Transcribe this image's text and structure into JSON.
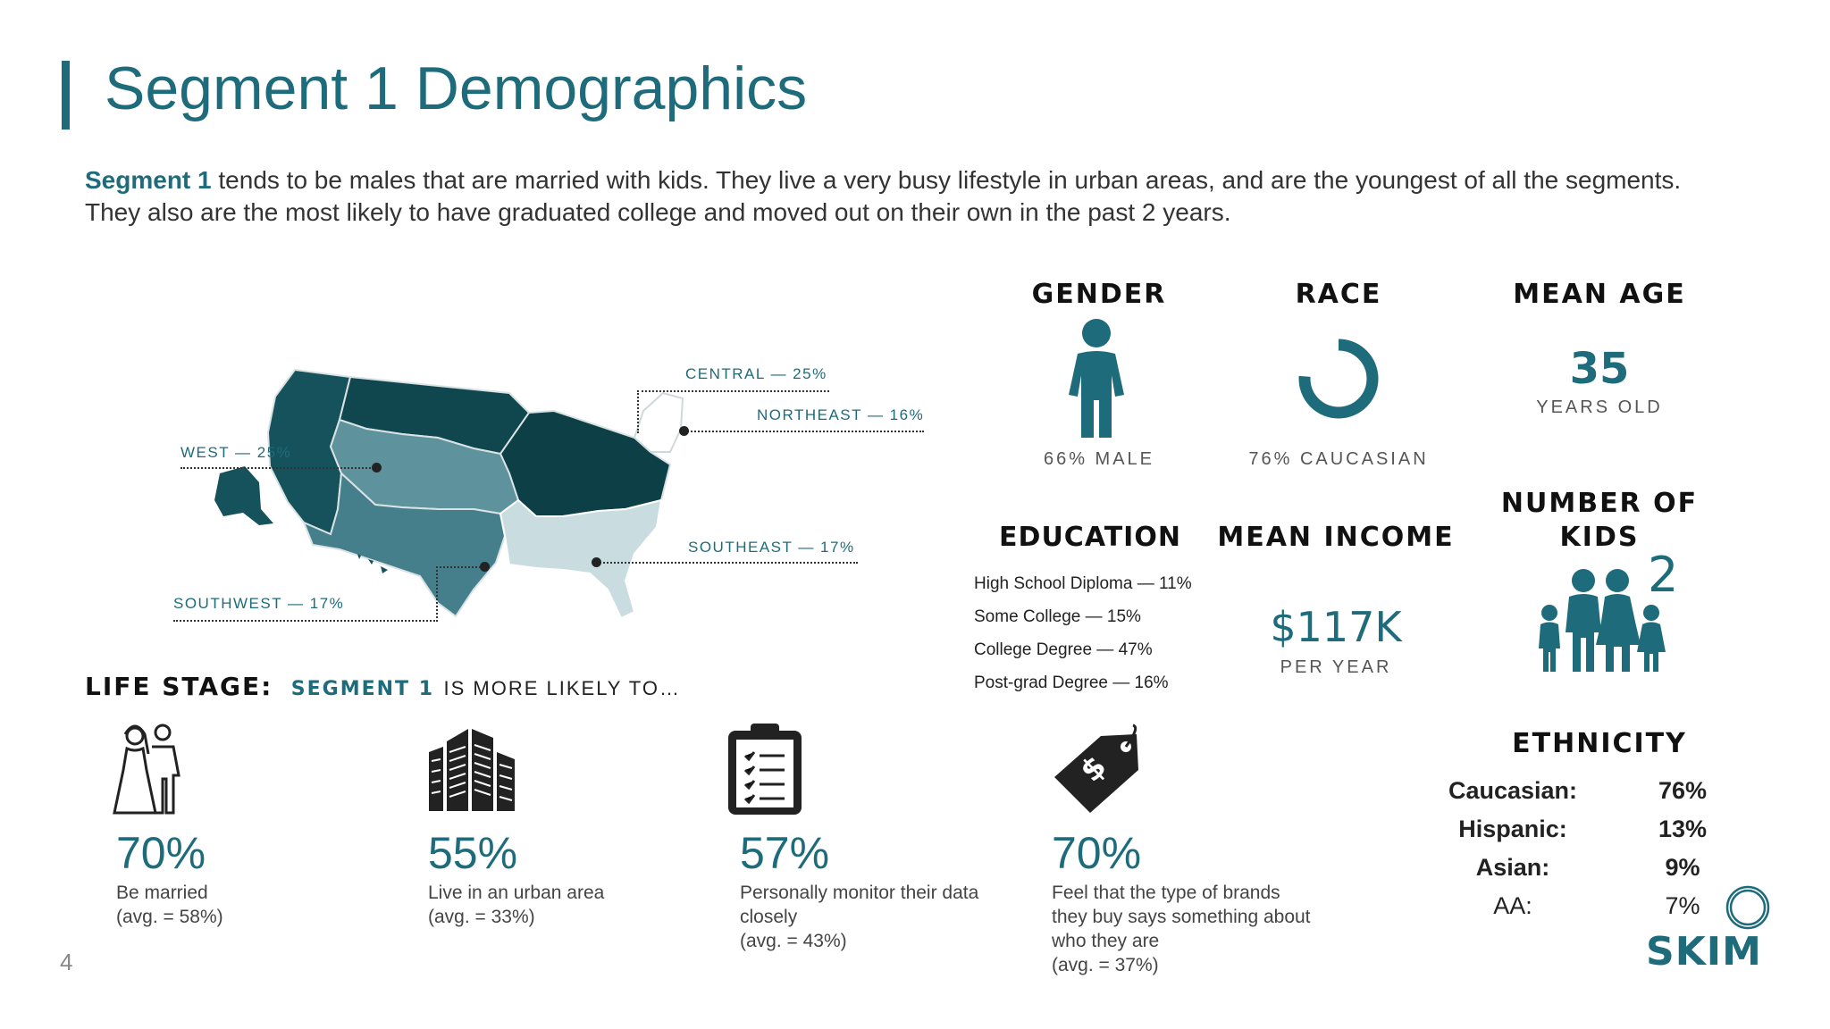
{
  "title": "Segment 1 Demographics",
  "intro": {
    "bold": "Segment 1",
    "rest": " tends to be males that are married with kids.  They live a very busy lifestyle in urban areas, and are the youngest of all the segments.  They also are the most likely to have graduated college and moved out on their own in the past 2 years."
  },
  "map": {
    "regions": [
      {
        "label": "CENTRAL — 25%"
      },
      {
        "label": "NORTHEAST — 16%"
      },
      {
        "label": "WEST — 25%"
      },
      {
        "label": "SOUTHEAST — 17%"
      },
      {
        "label": "SOUTHWEST — 17%"
      }
    ],
    "colors": {
      "dark": "#10474f",
      "mid": "#2c6f7c",
      "light": "#5e939e",
      "pale": "#c9dde1",
      "outline": "#d9e2e4"
    }
  },
  "gender": {
    "heading": "GENDER",
    "caption": "66% MALE",
    "value_pct": 66,
    "icon": "person-icon"
  },
  "race": {
    "heading": "RACE",
    "caption": "76% CAUCASIAN",
    "value_pct": 76,
    "icon": "donut-icon"
  },
  "age": {
    "heading": "MEAN AGE",
    "value": "35",
    "caption": "YEARS OLD"
  },
  "education": {
    "heading": "EDUCATION",
    "items": [
      "High School Diploma — 11%",
      "Some College — 15%",
      "College  Degree — 47%",
      "Post-grad Degree — 16%"
    ]
  },
  "income": {
    "heading": "MEAN INCOME",
    "value": "$117K",
    "caption": "PER YEAR"
  },
  "kids": {
    "heading_line1": "NUMBER OF",
    "heading_line2": "KIDS",
    "value": "2",
    "icon": "family-icon"
  },
  "life_stage": {
    "label": "LIFE STAGE:",
    "segment": "SEGMENT 1",
    "rest": "IS MORE LIKELY TO…",
    "items": [
      {
        "pct": "70%",
        "line1": "Be married",
        "line2": "",
        "line3": "",
        "avg": "(avg. = 58%)",
        "icon": "wedding-couple-icon"
      },
      {
        "pct": "55%",
        "line1": "Live in an urban area",
        "line2": "",
        "line3": "",
        "avg": "(avg. = 33%)",
        "icon": "city-buildings-icon"
      },
      {
        "pct": "57%",
        "line1": "Personally monitor their data",
        "line2": "closely",
        "line3": "",
        "avg": "(avg. = 43%)",
        "icon": "clipboard-checklist-icon"
      },
      {
        "pct": "70%",
        "line1": "Feel that the type of brands",
        "line2": "they buy says something about",
        "line3": "who they are",
        "avg": "(avg. = 37%)",
        "icon": "price-tag-icon"
      }
    ]
  },
  "ethnicity": {
    "heading": "ETHNICITY",
    "rows": [
      {
        "label": "Caucasian:",
        "value": "76%"
      },
      {
        "label": "Hispanic:",
        "value": "13%"
      },
      {
        "label": "Asian:",
        "value": "9%"
      },
      {
        "label": "AA:",
        "value": "7%"
      }
    ]
  },
  "logo": {
    "text": "SKIM"
  },
  "page_number": "4",
  "accent": "#1e6b7b"
}
